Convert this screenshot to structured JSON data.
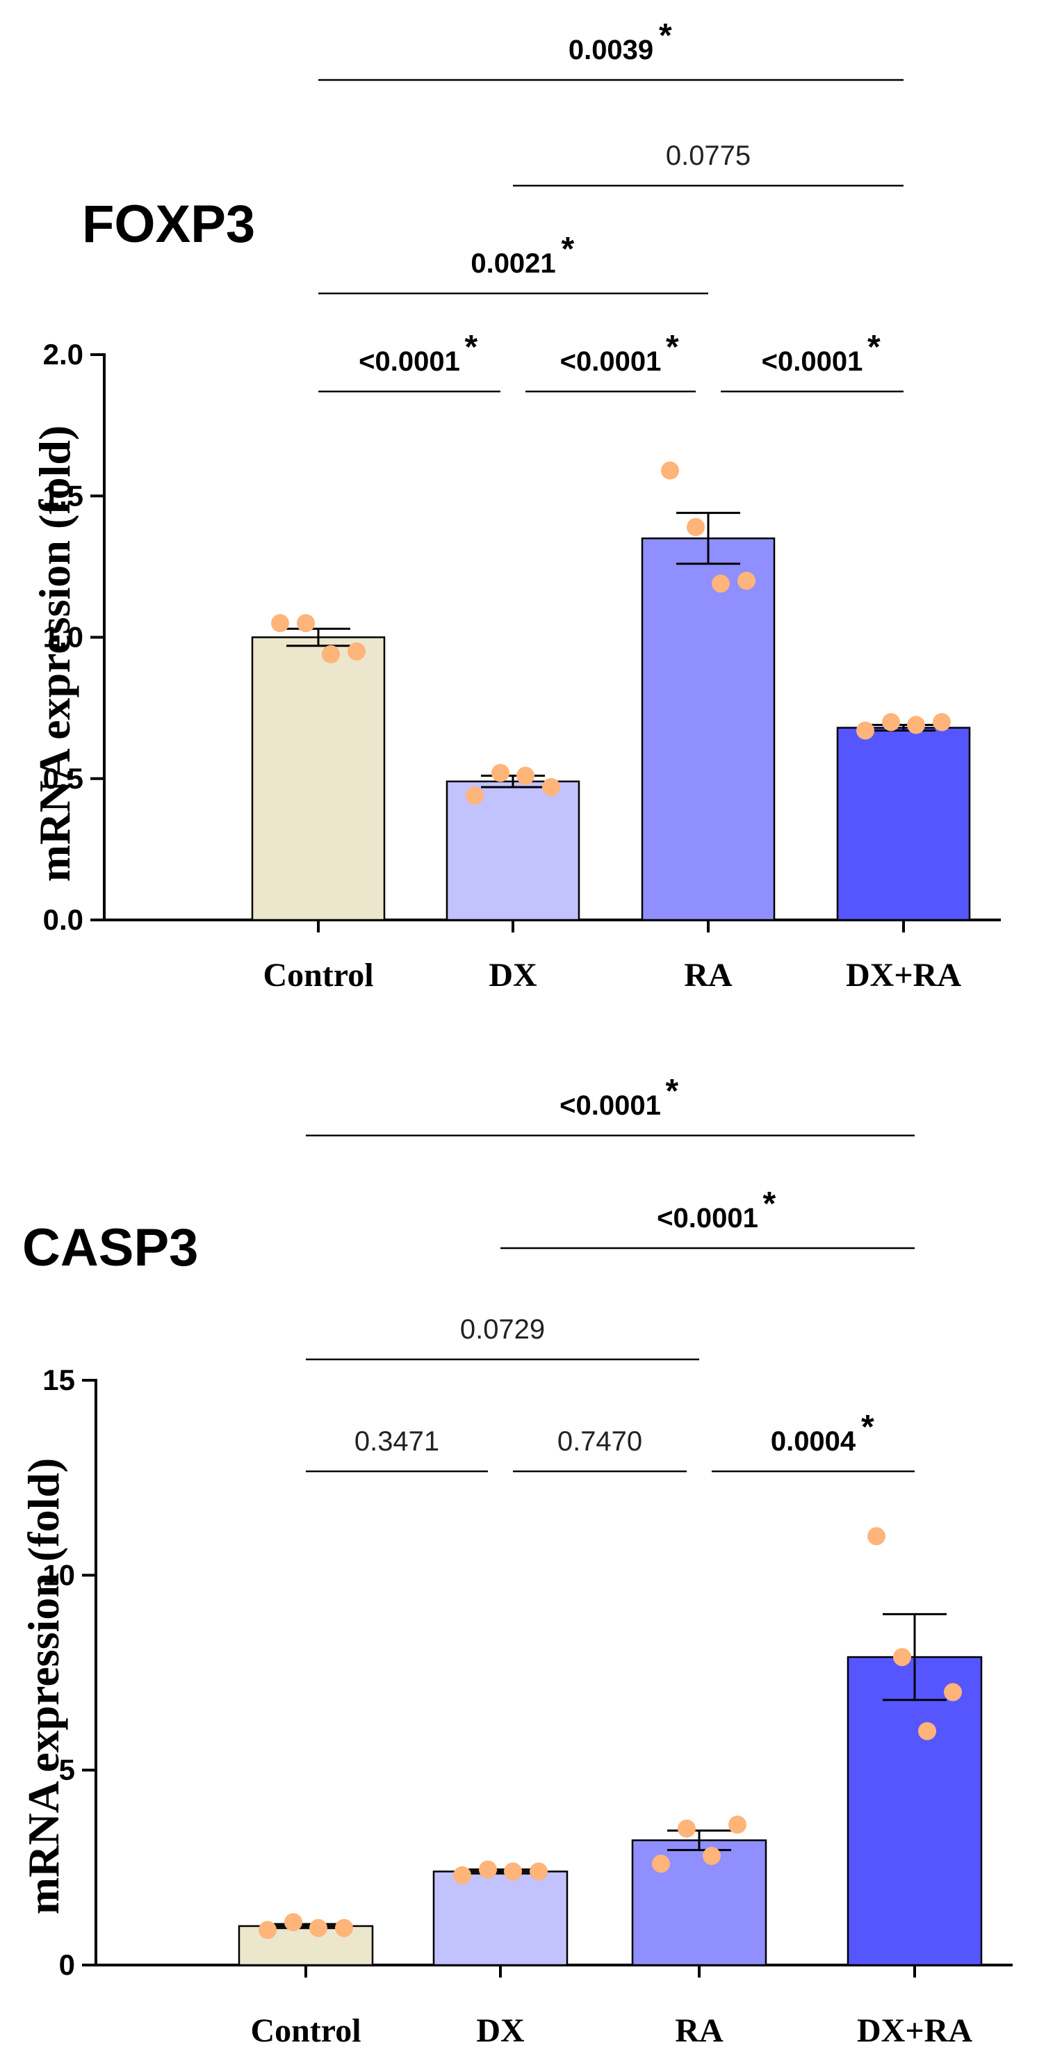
{
  "chart_data": [
    {
      "type": "bar",
      "title": "FOXP3",
      "ylabel": "mRNA expression (fold)",
      "categories": [
        "Control",
        "DX",
        "RA",
        "DX+RA"
      ],
      "values": [
        1.0,
        0.49,
        1.35,
        0.68
      ],
      "sem": [
        0.03,
        0.02,
        0.09,
        0.01
      ],
      "points": [
        [
          1.05,
          1.05,
          0.94,
          0.95
        ],
        [
          0.44,
          0.52,
          0.51,
          0.47
        ],
        [
          1.59,
          1.39,
          1.19,
          1.2
        ],
        [
          0.67,
          0.7,
          0.69,
          0.7
        ]
      ],
      "ylim": [
        0,
        2.0
      ],
      "yticks": [
        "0.0",
        "0.5",
        "1.0",
        "1.5",
        "2.0"
      ],
      "yticks_values": [
        0,
        0.5,
        1.0,
        1.5,
        2.0
      ],
      "bar_colors": [
        "#ebe6cc",
        "#c2c2ff",
        "#8f8fff",
        "#5656ff"
      ],
      "point_color": "#ffb47a",
      "comparisons": [
        {
          "from": 0,
          "to": 1,
          "label": "<0.0001",
          "bold": true,
          "star": "*"
        },
        {
          "from": 1,
          "to": 2,
          "label": "<0.0001",
          "bold": true,
          "star": "*"
        },
        {
          "from": 2,
          "to": 3,
          "label": "<0.0001",
          "bold": true,
          "star": "*"
        },
        {
          "from": 0,
          "to": 2,
          "label": "0.0021",
          "bold": true,
          "star": "*"
        },
        {
          "from": 1,
          "to": 3,
          "label": "0.0775",
          "bold": false,
          "star": ""
        },
        {
          "from": 0,
          "to": 3,
          "label": "0.0039",
          "bold": true,
          "star": "*"
        }
      ]
    },
    {
      "type": "bar",
      "title": "CASP3",
      "ylabel": "mRNA expression (fold)",
      "categories": [
        "Control",
        "DX",
        "RA",
        "DX+RA"
      ],
      "values": [
        1.0,
        2.4,
        3.2,
        7.9
      ],
      "sem": [
        0.05,
        0.05,
        0.25,
        1.1
      ],
      "points": [
        [
          0.9,
          1.1,
          0.95,
          0.95
        ],
        [
          2.3,
          2.45,
          2.4,
          2.4
        ],
        [
          2.6,
          3.5,
          2.8,
          3.6
        ],
        [
          11.0,
          7.9,
          6.0,
          7.0
        ]
      ],
      "ylim": [
        0,
        15
      ],
      "yticks": [
        "0",
        "5",
        "10",
        "15"
      ],
      "yticks_values": [
        0,
        5,
        10,
        15
      ],
      "bar_colors": [
        "#ebe6cc",
        "#c2c2ff",
        "#8f8fff",
        "#5656ff"
      ],
      "point_color": "#ffb47a",
      "comparisons": [
        {
          "from": 0,
          "to": 1,
          "label": "0.3471",
          "bold": false,
          "star": ""
        },
        {
          "from": 1,
          "to": 2,
          "label": "0.7470",
          "bold": false,
          "star": ""
        },
        {
          "from": 2,
          "to": 3,
          "label": "0.0004",
          "bold": true,
          "star": "*"
        },
        {
          "from": 0,
          "to": 2,
          "label": "0.0729",
          "bold": false,
          "star": ""
        },
        {
          "from": 1,
          "to": 3,
          "label": "<0.0001",
          "bold": true,
          "star": "*"
        },
        {
          "from": 0,
          "to": 3,
          "label": "<0.0001",
          "bold": true,
          "star": "*"
        }
      ]
    }
  ]
}
